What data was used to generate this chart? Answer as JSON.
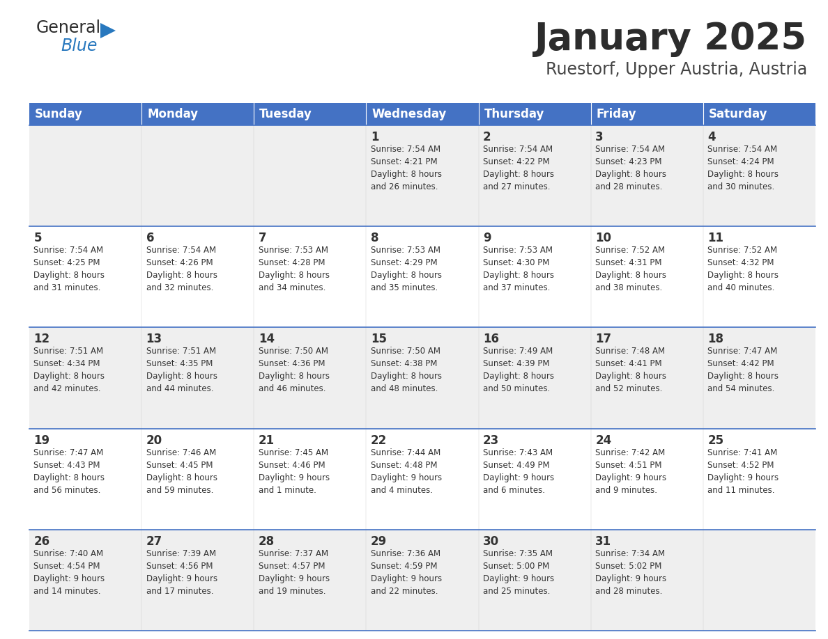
{
  "title": "January 2025",
  "subtitle": "Ruestorf, Upper Austria, Austria",
  "header_bg": "#4472C4",
  "header_text_color": "#FFFFFF",
  "days_of_week": [
    "Sunday",
    "Monday",
    "Tuesday",
    "Wednesday",
    "Thursday",
    "Friday",
    "Saturday"
  ],
  "row_bg_even": "#EFEFEF",
  "row_bg_odd": "#FFFFFF",
  "cell_border_color": "#4472C4",
  "text_color": "#333333",
  "title_color": "#2C2C2C",
  "subtitle_color": "#444444",
  "calendar": [
    [
      {
        "day": "",
        "info": ""
      },
      {
        "day": "",
        "info": ""
      },
      {
        "day": "",
        "info": ""
      },
      {
        "day": "1",
        "info": "Sunrise: 7:54 AM\nSunset: 4:21 PM\nDaylight: 8 hours\nand 26 minutes."
      },
      {
        "day": "2",
        "info": "Sunrise: 7:54 AM\nSunset: 4:22 PM\nDaylight: 8 hours\nand 27 minutes."
      },
      {
        "day": "3",
        "info": "Sunrise: 7:54 AM\nSunset: 4:23 PM\nDaylight: 8 hours\nand 28 minutes."
      },
      {
        "day": "4",
        "info": "Sunrise: 7:54 AM\nSunset: 4:24 PM\nDaylight: 8 hours\nand 30 minutes."
      }
    ],
    [
      {
        "day": "5",
        "info": "Sunrise: 7:54 AM\nSunset: 4:25 PM\nDaylight: 8 hours\nand 31 minutes."
      },
      {
        "day": "6",
        "info": "Sunrise: 7:54 AM\nSunset: 4:26 PM\nDaylight: 8 hours\nand 32 minutes."
      },
      {
        "day": "7",
        "info": "Sunrise: 7:53 AM\nSunset: 4:28 PM\nDaylight: 8 hours\nand 34 minutes."
      },
      {
        "day": "8",
        "info": "Sunrise: 7:53 AM\nSunset: 4:29 PM\nDaylight: 8 hours\nand 35 minutes."
      },
      {
        "day": "9",
        "info": "Sunrise: 7:53 AM\nSunset: 4:30 PM\nDaylight: 8 hours\nand 37 minutes."
      },
      {
        "day": "10",
        "info": "Sunrise: 7:52 AM\nSunset: 4:31 PM\nDaylight: 8 hours\nand 38 minutes."
      },
      {
        "day": "11",
        "info": "Sunrise: 7:52 AM\nSunset: 4:32 PM\nDaylight: 8 hours\nand 40 minutes."
      }
    ],
    [
      {
        "day": "12",
        "info": "Sunrise: 7:51 AM\nSunset: 4:34 PM\nDaylight: 8 hours\nand 42 minutes."
      },
      {
        "day": "13",
        "info": "Sunrise: 7:51 AM\nSunset: 4:35 PM\nDaylight: 8 hours\nand 44 minutes."
      },
      {
        "day": "14",
        "info": "Sunrise: 7:50 AM\nSunset: 4:36 PM\nDaylight: 8 hours\nand 46 minutes."
      },
      {
        "day": "15",
        "info": "Sunrise: 7:50 AM\nSunset: 4:38 PM\nDaylight: 8 hours\nand 48 minutes."
      },
      {
        "day": "16",
        "info": "Sunrise: 7:49 AM\nSunset: 4:39 PM\nDaylight: 8 hours\nand 50 minutes."
      },
      {
        "day": "17",
        "info": "Sunrise: 7:48 AM\nSunset: 4:41 PM\nDaylight: 8 hours\nand 52 minutes."
      },
      {
        "day": "18",
        "info": "Sunrise: 7:47 AM\nSunset: 4:42 PM\nDaylight: 8 hours\nand 54 minutes."
      }
    ],
    [
      {
        "day": "19",
        "info": "Sunrise: 7:47 AM\nSunset: 4:43 PM\nDaylight: 8 hours\nand 56 minutes."
      },
      {
        "day": "20",
        "info": "Sunrise: 7:46 AM\nSunset: 4:45 PM\nDaylight: 8 hours\nand 59 minutes."
      },
      {
        "day": "21",
        "info": "Sunrise: 7:45 AM\nSunset: 4:46 PM\nDaylight: 9 hours\nand 1 minute."
      },
      {
        "day": "22",
        "info": "Sunrise: 7:44 AM\nSunset: 4:48 PM\nDaylight: 9 hours\nand 4 minutes."
      },
      {
        "day": "23",
        "info": "Sunrise: 7:43 AM\nSunset: 4:49 PM\nDaylight: 9 hours\nand 6 minutes."
      },
      {
        "day": "24",
        "info": "Sunrise: 7:42 AM\nSunset: 4:51 PM\nDaylight: 9 hours\nand 9 minutes."
      },
      {
        "day": "25",
        "info": "Sunrise: 7:41 AM\nSunset: 4:52 PM\nDaylight: 9 hours\nand 11 minutes."
      }
    ],
    [
      {
        "day": "26",
        "info": "Sunrise: 7:40 AM\nSunset: 4:54 PM\nDaylight: 9 hours\nand 14 minutes."
      },
      {
        "day": "27",
        "info": "Sunrise: 7:39 AM\nSunset: 4:56 PM\nDaylight: 9 hours\nand 17 minutes."
      },
      {
        "day": "28",
        "info": "Sunrise: 7:37 AM\nSunset: 4:57 PM\nDaylight: 9 hours\nand 19 minutes."
      },
      {
        "day": "29",
        "info": "Sunrise: 7:36 AM\nSunset: 4:59 PM\nDaylight: 9 hours\nand 22 minutes."
      },
      {
        "day": "30",
        "info": "Sunrise: 7:35 AM\nSunset: 5:00 PM\nDaylight: 9 hours\nand 25 minutes."
      },
      {
        "day": "31",
        "info": "Sunrise: 7:34 AM\nSunset: 5:02 PM\nDaylight: 9 hours\nand 28 minutes."
      },
      {
        "day": "",
        "info": ""
      }
    ]
  ],
  "logo_color_general": "#2C2C2C",
  "logo_color_blue": "#2878BE",
  "logo_triangle_color": "#2878BE",
  "title_fontsize": 38,
  "subtitle_fontsize": 17,
  "header_fontsize": 12,
  "day_number_fontsize": 12,
  "info_fontsize": 8.5
}
